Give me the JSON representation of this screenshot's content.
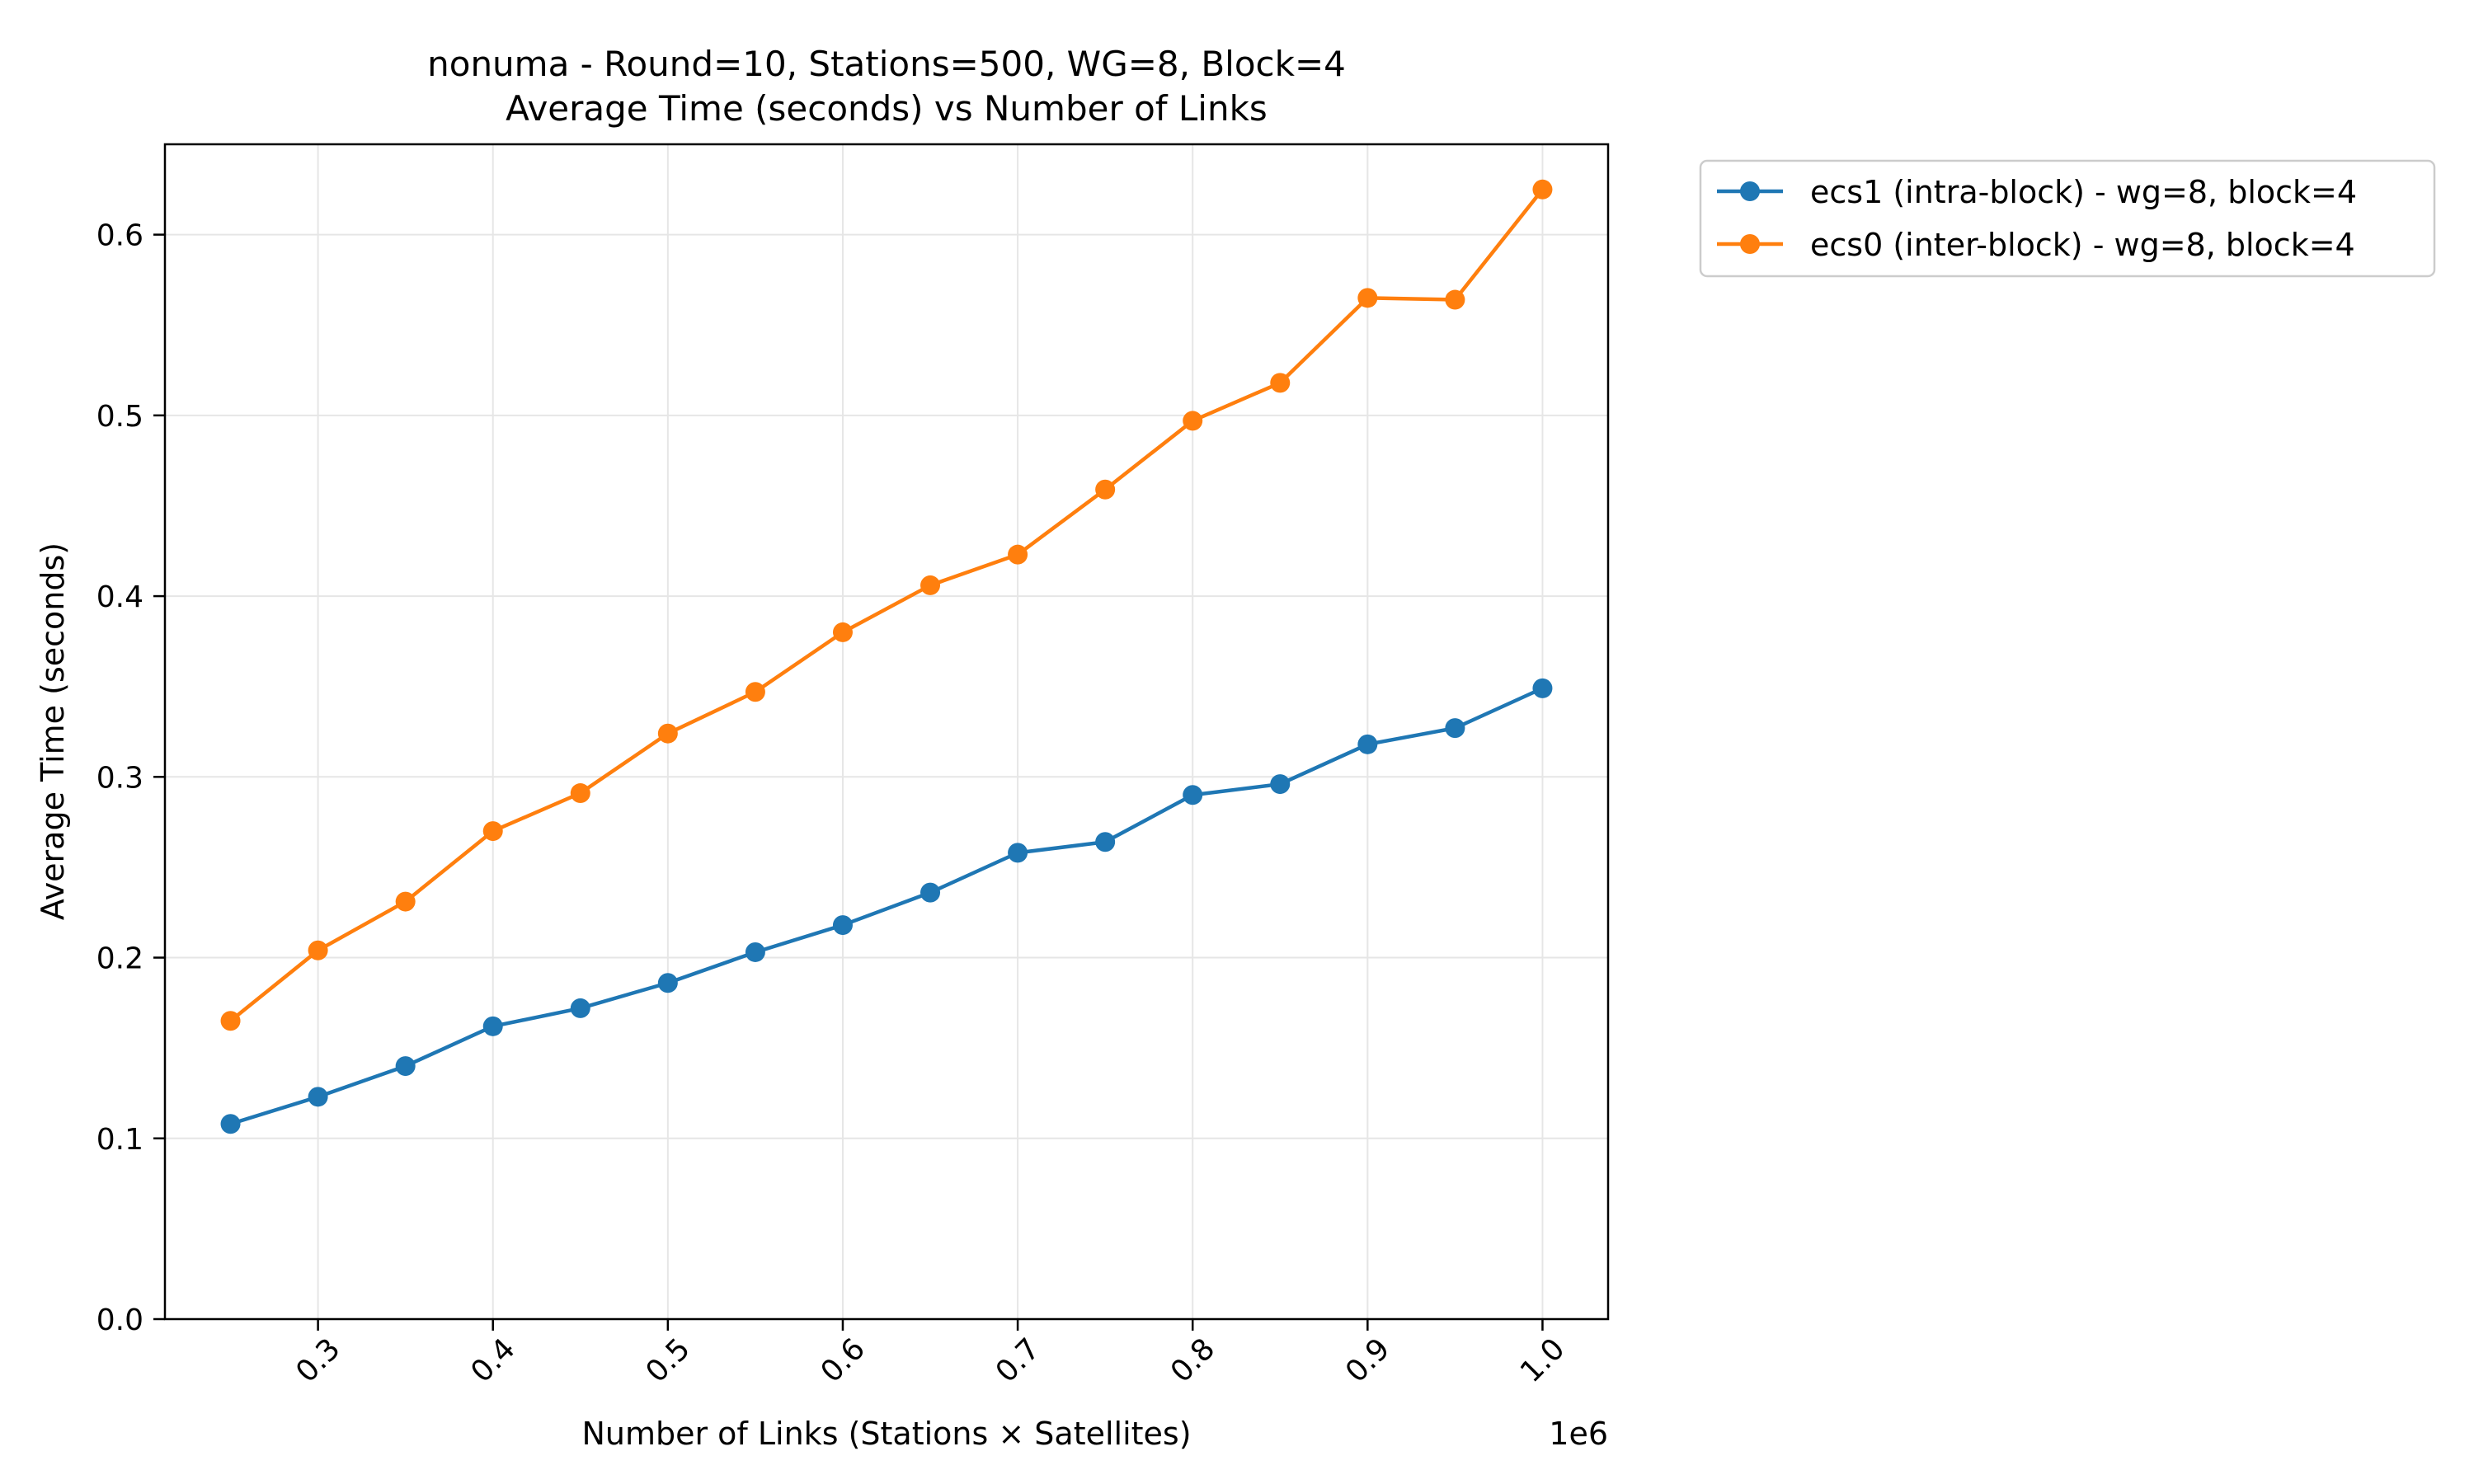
{
  "chart_data": {
    "type": "line",
    "title_line1": "nonuma - Round=10, Stations=500, WG=8, Block=4",
    "title_line2": "Average Time (seconds) vs Number of Links",
    "xlabel": "Number of Links (Stations × Satellites)",
    "ylabel": "Average Time (seconds)",
    "x_offset_label": "1e6",
    "x_scale": 1000000,
    "xlim": [
      212500,
      1037500
    ],
    "ylim": [
      0,
      0.65
    ],
    "x_ticks": [
      300000,
      400000,
      500000,
      600000,
      700000,
      800000,
      900000,
      1000000
    ],
    "x_tick_labels": [
      "0.3",
      "0.4",
      "0.5",
      "0.6",
      "0.7",
      "0.8",
      "0.9",
      "1.0"
    ],
    "y_ticks": [
      0.0,
      0.1,
      0.2,
      0.3,
      0.4,
      0.5,
      0.6
    ],
    "y_tick_labels": [
      "0.0",
      "0.1",
      "0.2",
      "0.3",
      "0.4",
      "0.5",
      "0.6"
    ],
    "grid": true,
    "legend_position": "outside-upper-right",
    "x": [
      250000,
      300000,
      350000,
      400000,
      450000,
      500000,
      550000,
      600000,
      650000,
      700000,
      750000,
      800000,
      850000,
      900000,
      950000,
      1000000
    ],
    "series": [
      {
        "name": "ecs1 (intra-block) - wg=8, block=4",
        "color": "#1f77b4",
        "values": [
          0.108,
          0.123,
          0.14,
          0.162,
          0.172,
          0.186,
          0.203,
          0.218,
          0.236,
          0.258,
          0.264,
          0.29,
          0.296,
          0.318,
          0.327,
          0.349
        ]
      },
      {
        "name": "ecs0 (inter-block) - wg=8, block=4",
        "color": "#ff7f0e",
        "values": [
          0.165,
          0.204,
          0.231,
          0.27,
          0.291,
          0.324,
          0.347,
          0.38,
          0.406,
          0.423,
          0.459,
          0.497,
          0.518,
          0.565,
          0.564,
          0.625
        ]
      }
    ]
  }
}
